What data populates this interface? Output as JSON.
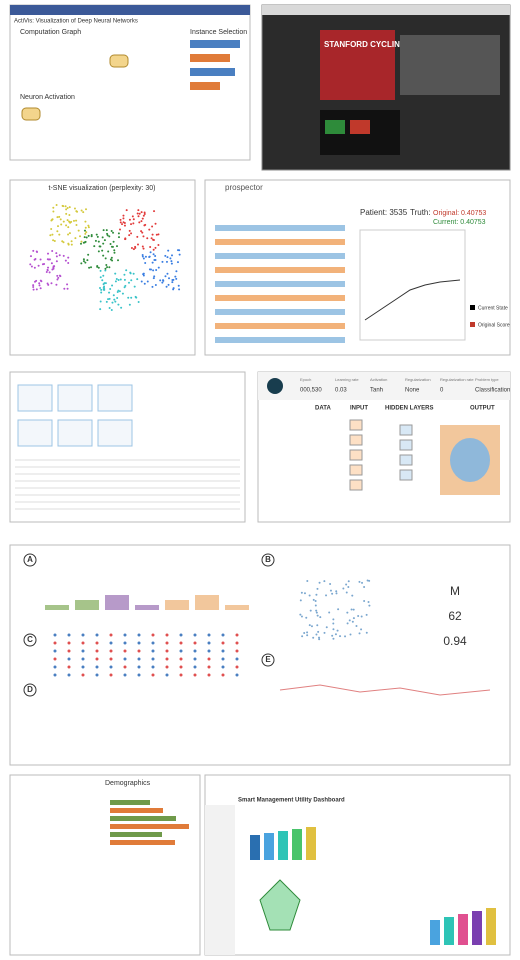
{
  "activis": {
    "title": "ActiVis: Visualization of Deep Neural Networks",
    "sections": [
      "Computation Graph",
      "Instance Selection",
      "Neuron Activation"
    ]
  },
  "cycling": {
    "title": "STANFORD CYCLING"
  },
  "tsne": {
    "title": "t-SNE visualization (perplexity: 30)"
  },
  "prospector": {
    "logo": "prospector",
    "patient": "Patient: 3535",
    "truth": "Truth:",
    "original": "Original: 0.40753",
    "current": "Current: 0.40753",
    "legend": [
      "Current State",
      "Original Score"
    ]
  },
  "playground": {
    "controls": [
      [
        "Epoch",
        "000,530"
      ],
      [
        "Learning rate",
        "0.03"
      ],
      [
        "Activation",
        "Tanh"
      ],
      [
        "Regularization",
        "None"
      ],
      [
        "Regularization rate",
        "0"
      ],
      [
        "Problem type",
        "Classification"
      ]
    ],
    "sections": [
      "DATA",
      "INPUT",
      "HIDDEN LAYERS",
      "OUTPUT"
    ]
  },
  "patient": {
    "labels": [
      "A",
      "B",
      "C",
      "D",
      "E"
    ],
    "stats": [
      "M",
      "62",
      "0.94"
    ]
  },
  "demographics": {
    "title": "Demographics"
  },
  "dashboard": {
    "title": "Smart Management Utility Dashboard"
  }
}
